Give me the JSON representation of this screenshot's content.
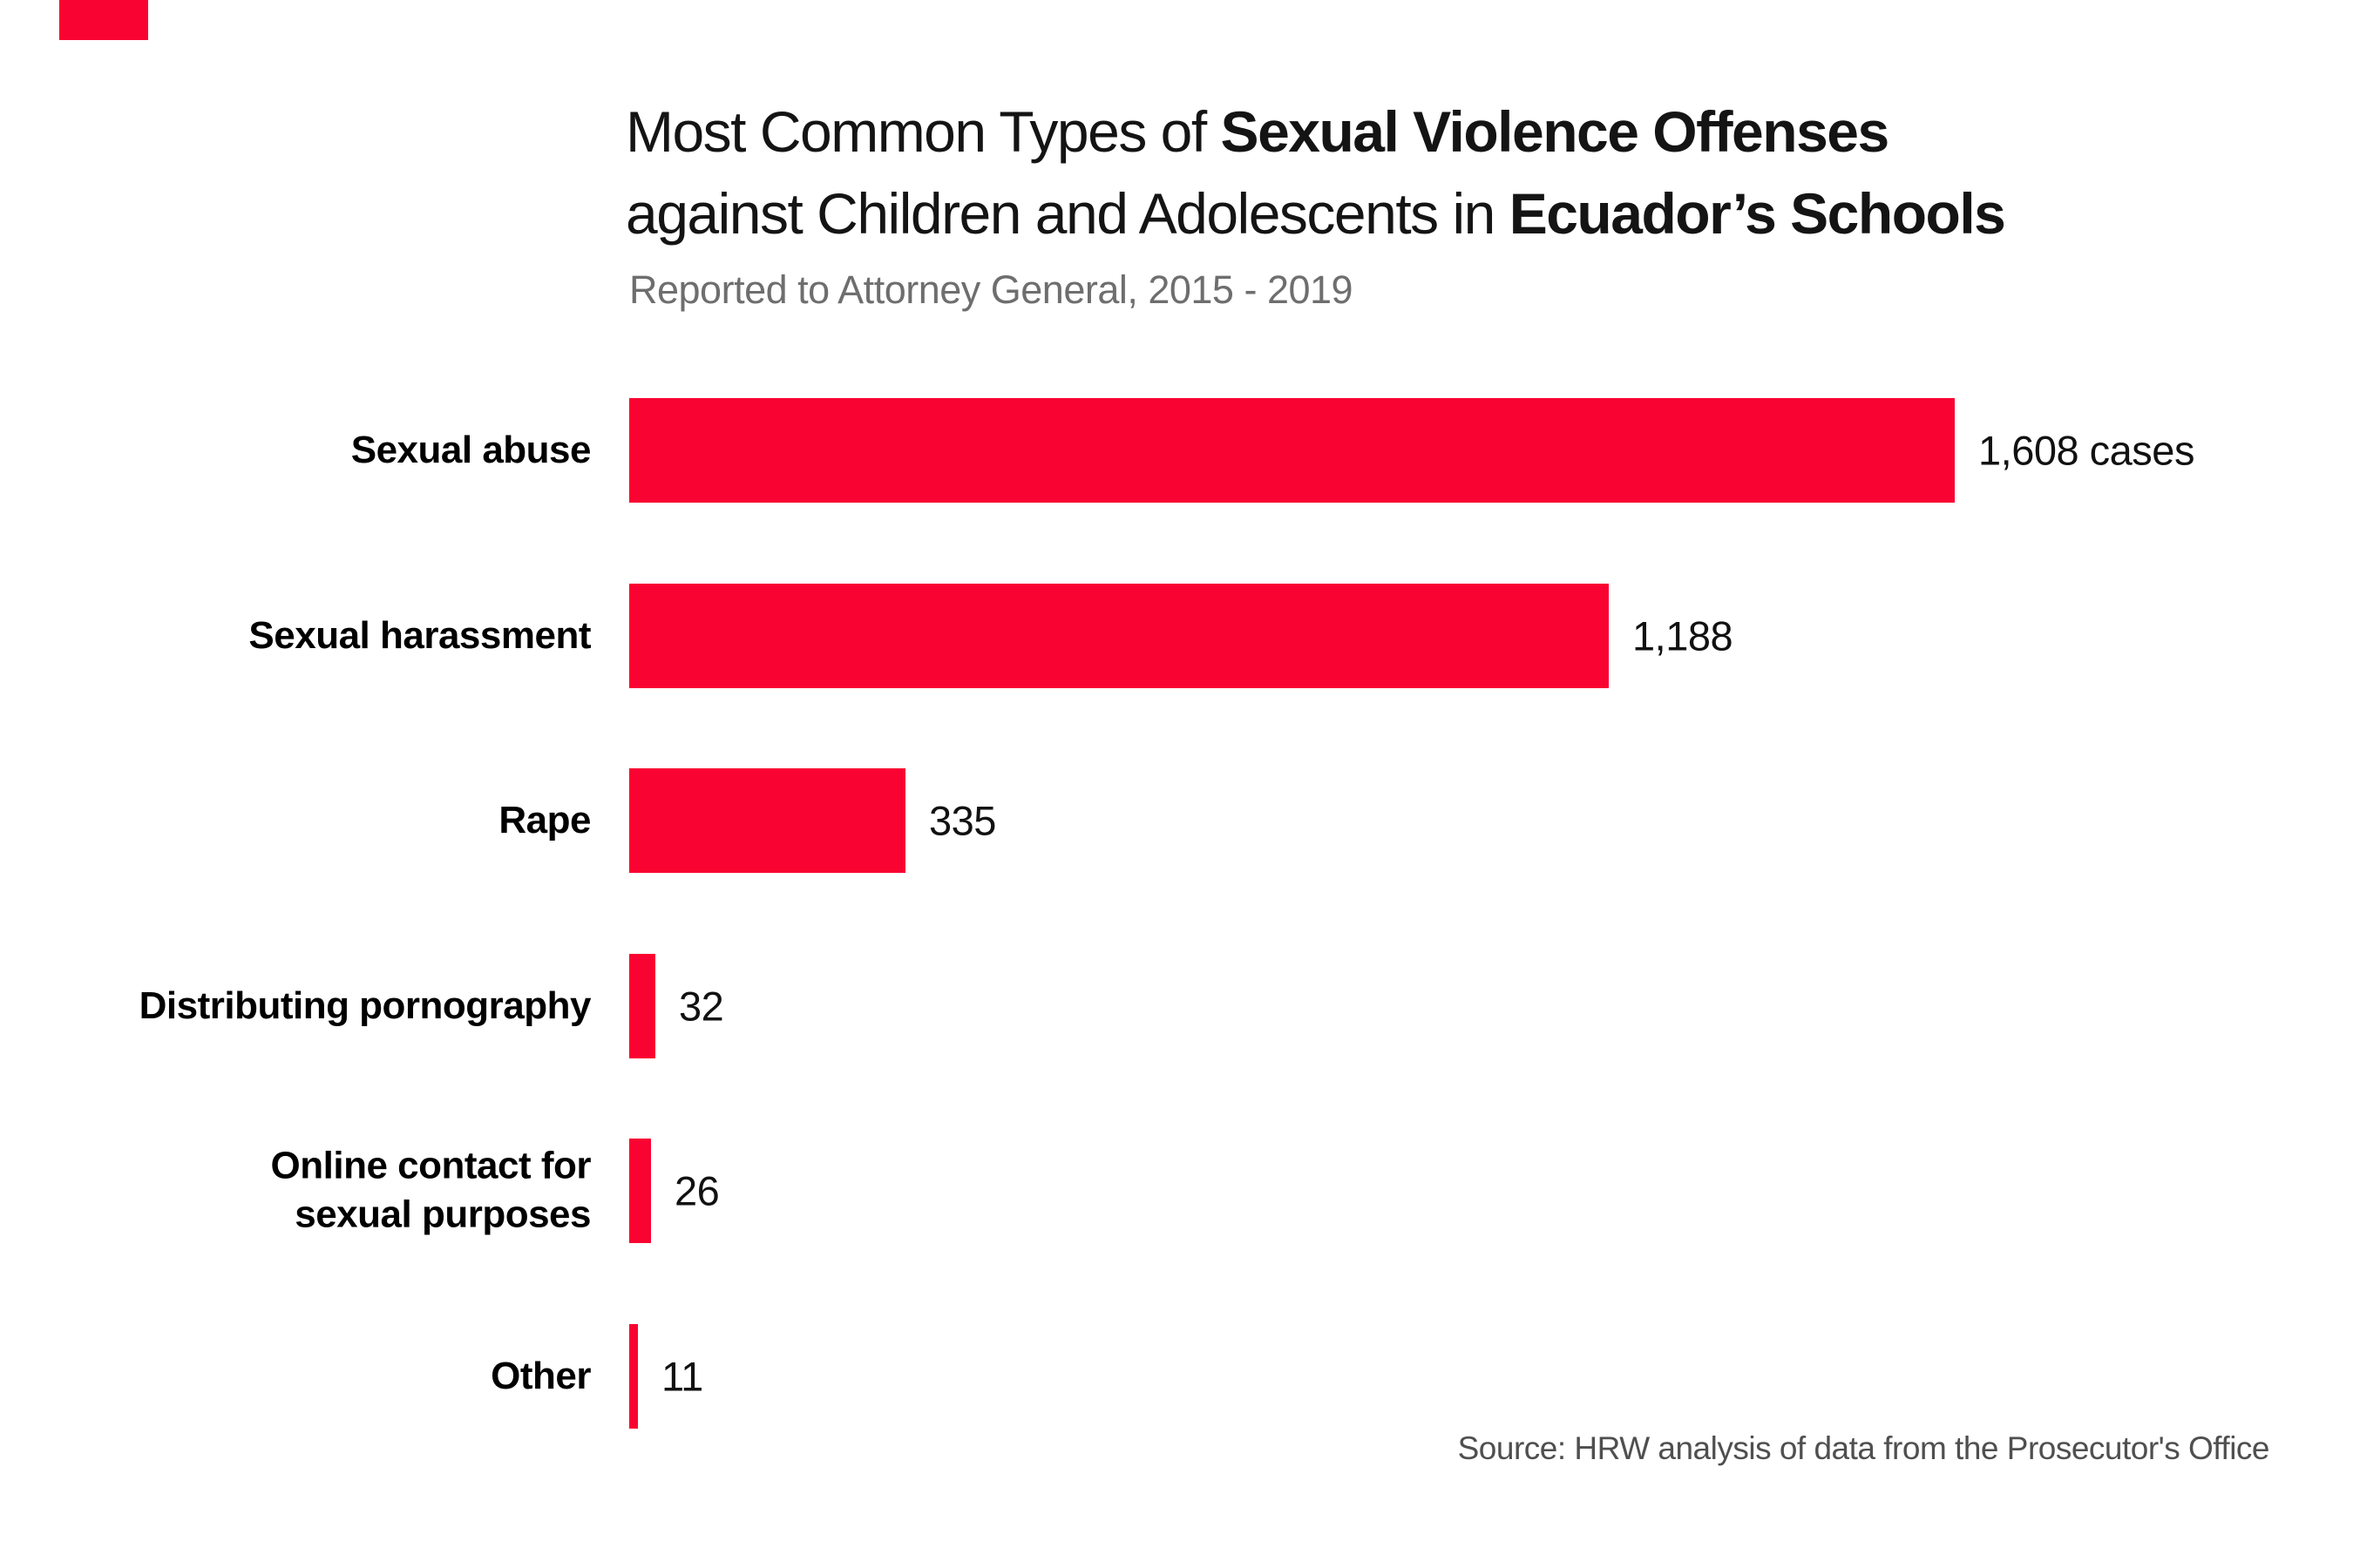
{
  "brand": {
    "accent_color": "#F90332"
  },
  "header": {
    "title_line1": {
      "regular": "Most Common Types of ",
      "bold": "Sexual Violence Offenses"
    },
    "title_line2": {
      "regular": "against Children and Adolescents in ",
      "bold": "Ecuador’s Schools"
    },
    "subtitle": "Reported to Attorney General, 2015 - 2019"
  },
  "chart_data": {
    "type": "bar",
    "orientation": "horizontal",
    "title": "Most Common Types of Sexual Violence Offenses against Children and Adolescents in Ecuador's Schools",
    "subtitle": "Reported to Attorney General, 2015 - 2019",
    "categories": [
      "Sexual abuse",
      "Sexual harassment",
      "Rape",
      "Distributing pornography",
      "Online contact for sexual purposes",
      "Other"
    ],
    "categories_display": [
      "Sexual abuse",
      "Sexual harassment",
      "Rape",
      "Distributing pornography",
      "Online contact for\nsexual purposes",
      "Other"
    ],
    "values": [
      1608,
      1188,
      335,
      32,
      26,
      11
    ],
    "value_labels": [
      "1,608 cases",
      "1,188",
      "335",
      "32",
      "26",
      "11"
    ],
    "unit": "cases",
    "bar_color": "#F90332",
    "xlim": [
      0,
      1700
    ],
    "grid": false,
    "legend": false
  },
  "footer": {
    "source": "Source: HRW analysis of data from the Prosecutor's Office"
  }
}
